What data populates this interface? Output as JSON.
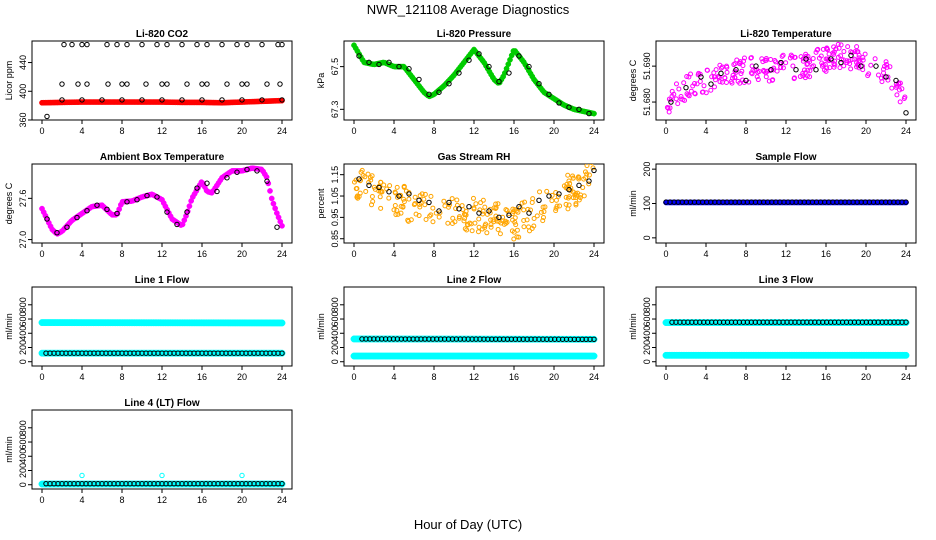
{
  "title": "NWR_121108  Average Diagnostics",
  "xlabel": "Hour of Day (UTC)",
  "colors": {
    "red": "#ff0000",
    "green": "#00cc00",
    "magenta": "#ff00ff",
    "orange": "#ffa500",
    "blue": "#0000ff",
    "cyan": "#00ffff",
    "black": "#000000"
  },
  "chart_data": [
    {
      "id": "li820-co2",
      "type": "scatter",
      "title": "Li-820 CO2",
      "ylabel": "Licor ppm",
      "xlim": [
        0,
        24
      ],
      "xticks": [
        "0",
        "4",
        "8",
        "12",
        "16",
        "20",
        "24"
      ],
      "ylim": [
        360,
        470
      ],
      "yticks": [
        "360",
        "400",
        "440"
      ],
      "series": [
        {
          "color": "#ff0000",
          "style": "dense",
          "x": [
            0,
            2,
            4,
            6,
            8,
            10,
            12,
            14,
            16,
            18,
            20,
            22,
            24
          ],
          "y": [
            384,
            384.5,
            385,
            385,
            385,
            385,
            385,
            384.5,
            384.5,
            384,
            385,
            386,
            387
          ]
        },
        {
          "color": "#000000",
          "style": "circles",
          "x": [
            0.5,
            2.2,
            3,
            4,
            4.5,
            6.5,
            7.5,
            8.5,
            10,
            11.5,
            12.5,
            14,
            15.5,
            16.5,
            18,
            19.5,
            20.5,
            22,
            23.6,
            24,
            2,
            3.6,
            4.5,
            6.6,
            8,
            8.5,
            10.4,
            12,
            12.5,
            14.5,
            16,
            16.5,
            18.5,
            20,
            20.5,
            22.5,
            23.8,
            2,
            4,
            6,
            8,
            10,
            12,
            14,
            16,
            18,
            20,
            22,
            24
          ],
          "y": [
            365,
            465,
            465,
            465,
            465,
            465,
            465,
            465,
            465,
            465,
            465,
            465,
            465,
            465,
            465,
            465,
            465,
            465,
            465,
            465,
            410,
            410,
            410,
            410,
            410,
            410,
            410,
            410,
            410,
            410,
            410,
            410,
            410,
            410,
            410,
            410,
            410,
            388,
            388,
            388,
            388,
            388,
            388,
            388,
            388,
            388,
            388,
            388,
            388
          ]
        }
      ]
    },
    {
      "id": "li820-pressure",
      "type": "scatter",
      "title": "Li-820 Pressure",
      "ylabel": "kPa",
      "xlim": [
        0,
        24
      ],
      "xticks": [
        "0",
        "4",
        "8",
        "12",
        "16",
        "20",
        "24"
      ],
      "ylim": [
        67.25,
        67.62
      ],
      "yticks": [
        "67.3",
        "67.5"
      ],
      "series": [
        {
          "color": "#00cc00",
          "style": "dense",
          "x": [
            0,
            0.5,
            1,
            2,
            3,
            4,
            5,
            6,
            7,
            7.5,
            8,
            9,
            10,
            11,
            12,
            13,
            14,
            14.5,
            15,
            16,
            17,
            18,
            19,
            20,
            21,
            22,
            23,
            24
          ],
          "y": [
            67.6,
            67.56,
            67.52,
            67.51,
            67.52,
            67.5,
            67.5,
            67.44,
            67.38,
            67.36,
            67.37,
            67.41,
            67.46,
            67.52,
            67.58,
            67.52,
            67.44,
            67.42,
            67.46,
            67.58,
            67.52,
            67.44,
            67.38,
            67.35,
            67.32,
            67.3,
            67.29,
            67.28
          ]
        },
        {
          "color": "#000000",
          "style": "circles",
          "x": [
            0.5,
            1.5,
            2.5,
            3.5,
            4.5,
            5.5,
            6.5,
            7.5,
            8.5,
            9.5,
            10.5,
            11.5,
            12.5,
            13.5,
            14.5,
            15.5,
            16.5,
            17.5,
            18.5,
            19.5,
            20.5,
            21.5,
            22.5,
            23.5
          ],
          "y": [
            67.55,
            67.52,
            67.51,
            67.52,
            67.5,
            67.49,
            67.44,
            67.37,
            67.38,
            67.42,
            67.47,
            67.53,
            67.56,
            67.5,
            67.43,
            67.47,
            67.55,
            67.5,
            67.42,
            67.37,
            67.33,
            67.31,
            67.3,
            67.28
          ]
        }
      ]
    },
    {
      "id": "li820-temperature",
      "type": "scatter",
      "title": "Li-820 Temperature",
      "ylabel": "degrees C",
      "xlim": [
        0,
        24
      ],
      "xticks": [
        "0",
        "4",
        "8",
        "12",
        "16",
        "20",
        "24"
      ],
      "ylim": [
        51.675,
        51.697
      ],
      "yticks": [
        "51.680",
        "51.690"
      ],
      "series": [
        {
          "color": "#ff00ff",
          "style": "scatter-noise",
          "x": [
            0,
            2,
            4,
            6,
            8,
            10,
            12,
            14,
            16,
            18,
            20,
            22,
            23,
            24
          ],
          "y": [
            51.679,
            51.684,
            51.686,
            51.688,
            51.689,
            51.689,
            51.69,
            51.69,
            51.692,
            51.693,
            51.691,
            51.688,
            51.685,
            51.681
          ],
          "noise": 0.0035
        },
        {
          "color": "#000000",
          "style": "circles",
          "x": [
            0.5,
            2,
            3.5,
            4.5,
            5.5,
            7,
            8,
            9,
            10.5,
            11.5,
            13,
            14,
            15,
            16.5,
            17.5,
            18.5,
            19.5,
            21,
            22,
            23,
            24
          ],
          "y": [
            51.68,
            51.684,
            51.687,
            51.685,
            51.688,
            51.689,
            51.686,
            51.69,
            51.689,
            51.691,
            51.689,
            51.692,
            51.689,
            51.692,
            51.691,
            51.693,
            51.69,
            51.69,
            51.687,
            51.686,
            51.677
          ]
        }
      ]
    },
    {
      "id": "ambient-box-temperature",
      "type": "scatter",
      "title": "Ambient Box Temperature",
      "ylabel": "degrees C",
      "xlim": [
        0,
        24
      ],
      "xticks": [
        "0",
        "4",
        "8",
        "12",
        "16",
        "20",
        "24"
      ],
      "ylim": [
        26.95,
        28.1
      ],
      "yticks": [
        "27.0",
        "27.6"
      ],
      "series": [
        {
          "color": "#ff00ff",
          "style": "dense",
          "x": [
            0,
            0.5,
            1,
            1.5,
            2,
            3,
            4,
            5,
            6,
            7,
            7.5,
            8,
            9,
            10,
            11,
            12,
            13,
            14,
            14.5,
            15,
            16,
            16.5,
            17,
            18,
            19,
            20,
            21,
            22,
            22.5,
            23,
            23.5,
            24
          ],
          "y": [
            27.45,
            27.3,
            27.15,
            27.08,
            27.12,
            27.28,
            27.38,
            27.48,
            27.5,
            27.36,
            27.36,
            27.55,
            27.56,
            27.62,
            27.66,
            27.58,
            27.3,
            27.2,
            27.38,
            27.6,
            27.85,
            27.7,
            27.68,
            27.9,
            28.0,
            28.0,
            28.04,
            28.02,
            27.9,
            27.58,
            27.38,
            27.2
          ]
        },
        {
          "color": "#000000",
          "style": "circles",
          "x": [
            0.5,
            1.5,
            2.5,
            3.5,
            4.5,
            5.5,
            6.5,
            7.5,
            8.5,
            9.5,
            10.5,
            11.5,
            12.5,
            13.5,
            14.5,
            15.5,
            16.5,
            17.5,
            18.5,
            19.5,
            20.5,
            21.5,
            22.5,
            23.5
          ],
          "y": [
            27.3,
            27.1,
            27.18,
            27.32,
            27.42,
            27.5,
            27.44,
            27.38,
            27.55,
            27.58,
            27.64,
            27.62,
            27.4,
            27.22,
            27.4,
            27.75,
            27.82,
            27.7,
            27.9,
            27.98,
            28.02,
            28.0,
            27.85,
            27.18
          ]
        }
      ]
    },
    {
      "id": "gas-stream-rh",
      "type": "scatter",
      "title": "Gas Stream RH",
      "ylabel": "percent",
      "xlim": [
        0,
        24
      ],
      "xticks": [
        "0",
        "4",
        "8",
        "12",
        "16",
        "20",
        "24"
      ],
      "ylim": [
        0.83,
        1.2
      ],
      "yticks": [
        "0.85",
        "0.95",
        "1.05",
        "1.15"
      ],
      "series": [
        {
          "color": "#ffa500",
          "style": "scatter-noise",
          "x": [
            0,
            2,
            4,
            6,
            8,
            10,
            12,
            14,
            16,
            18,
            20,
            22,
            24
          ],
          "y": [
            1.12,
            1.08,
            1.04,
            1.0,
            0.99,
            0.97,
            0.96,
            0.95,
            0.92,
            0.98,
            1.04,
            1.08,
            1.14
          ],
          "noise": 0.08
        },
        {
          "color": "#000000",
          "style": "circles",
          "x": [
            0.5,
            1.5,
            2.5,
            3.5,
            4.5,
            5.5,
            6.5,
            7.5,
            8.5,
            9.5,
            10.5,
            11.5,
            12.5,
            13.5,
            14.5,
            15.5,
            16.5,
            17.5,
            18.5,
            19.5,
            20.5,
            21.5,
            22.5,
            23.5,
            24
          ],
          "y": [
            1.13,
            1.1,
            1.09,
            1.07,
            1.05,
            1.06,
            1.03,
            1.02,
            0.98,
            1.02,
            0.99,
            1.0,
            0.97,
            0.98,
            0.95,
            0.96,
            1.0,
            0.97,
            1.03,
            1.05,
            1.06,
            1.08,
            1.1,
            1.12,
            1.17
          ]
        }
      ]
    },
    {
      "id": "sample-flow",
      "type": "scatter",
      "title": "Sample Flow",
      "ylabel": "ml/min",
      "xlim": [
        0,
        24
      ],
      "xticks": [
        "0",
        "4",
        "8",
        "12",
        "16",
        "20",
        "24"
      ],
      "ylim": [
        -15,
        215
      ],
      "yticks": [
        "0",
        "100",
        "200"
      ],
      "series": [
        {
          "color": "#0000ff",
          "style": "dense",
          "x": [
            0,
            24
          ],
          "y": [
            103,
            103
          ]
        },
        {
          "color": "#000000",
          "style": "circles-row",
          "x": [
            0,
            24
          ],
          "y": [
            104,
            104
          ],
          "count": 60
        }
      ]
    },
    {
      "id": "line-1-flow",
      "type": "scatter",
      "title": "Line 1 Flow",
      "ylabel": "ml/min",
      "xlim": [
        0,
        24
      ],
      "xticks": [
        "0",
        "4",
        "8",
        "12",
        "16",
        "20",
        "24"
      ],
      "ylim": [
        -60,
        1050
      ],
      "yticks": [
        "0",
        "200",
        "400",
        "600",
        "800"
      ],
      "series": [
        {
          "color": "#00ffff",
          "style": "dense-band",
          "x": [
            0,
            24
          ],
          "y": [
            550,
            545
          ]
        },
        {
          "color": "#00ffff",
          "style": "dense-band",
          "x": [
            0,
            24
          ],
          "y": [
            120,
            120
          ]
        },
        {
          "color": "#000000",
          "style": "circles-row",
          "x": [
            0.4,
            24
          ],
          "y": [
            120,
            120
          ],
          "count": 60
        }
      ]
    },
    {
      "id": "line-2-flow",
      "type": "scatter",
      "title": "Line 2 Flow",
      "ylabel": "ml/min",
      "xlim": [
        0,
        24
      ],
      "xticks": [
        "0",
        "4",
        "8",
        "12",
        "16",
        "20",
        "24"
      ],
      "ylim": [
        -60,
        1050
      ],
      "yticks": [
        "0",
        "200",
        "400",
        "600",
        "800"
      ],
      "series": [
        {
          "color": "#00ffff",
          "style": "dense-band",
          "x": [
            0,
            24
          ],
          "y": [
            320,
            315
          ]
        },
        {
          "color": "#00ffff",
          "style": "dense-band",
          "x": [
            0,
            24
          ],
          "y": [
            80,
            80
          ]
        },
        {
          "color": "#000000",
          "style": "circles-row",
          "x": [
            0.8,
            24
          ],
          "y": [
            320,
            315
          ],
          "count": 60
        }
      ]
    },
    {
      "id": "line-3-flow",
      "type": "scatter",
      "title": "Line 3 Flow",
      "ylabel": "ml/min",
      "xlim": [
        0,
        24
      ],
      "xticks": [
        "0",
        "4",
        "8",
        "12",
        "16",
        "20",
        "24"
      ],
      "ylim": [
        -60,
        1050
      ],
      "yticks": [
        "0",
        "200",
        "400",
        "600",
        "800"
      ],
      "series": [
        {
          "color": "#00ffff",
          "style": "dense-band",
          "x": [
            0,
            24
          ],
          "y": [
            550,
            550
          ]
        },
        {
          "color": "#00ffff",
          "style": "dense-band",
          "x": [
            0,
            24
          ],
          "y": [
            90,
            90
          ]
        },
        {
          "color": "#000000",
          "style": "circles-row",
          "x": [
            0.6,
            24
          ],
          "y": [
            555,
            555
          ],
          "count": 60
        }
      ]
    },
    {
      "id": "line-4-flow",
      "type": "scatter",
      "title": "Line 4 (LT) Flow",
      "ylabel": "ml/min",
      "xlim": [
        0,
        24
      ],
      "xticks": [
        "0",
        "4",
        "8",
        "12",
        "16",
        "20",
        "24"
      ],
      "ylim": [
        -60,
        1050
      ],
      "yticks": [
        "0",
        "200",
        "400",
        "600",
        "800"
      ],
      "series": [
        {
          "color": "#00ffff",
          "style": "dense-band",
          "x": [
            0,
            24
          ],
          "y": [
            10,
            10
          ]
        },
        {
          "color": "#000000",
          "style": "circles-row",
          "x": [
            0.4,
            24
          ],
          "y": [
            15,
            15
          ],
          "count": 60
        },
        {
          "color": "#00ffff",
          "style": "circles",
          "x": [
            4,
            12,
            20
          ],
          "y": [
            130,
            130,
            130
          ]
        }
      ]
    }
  ]
}
